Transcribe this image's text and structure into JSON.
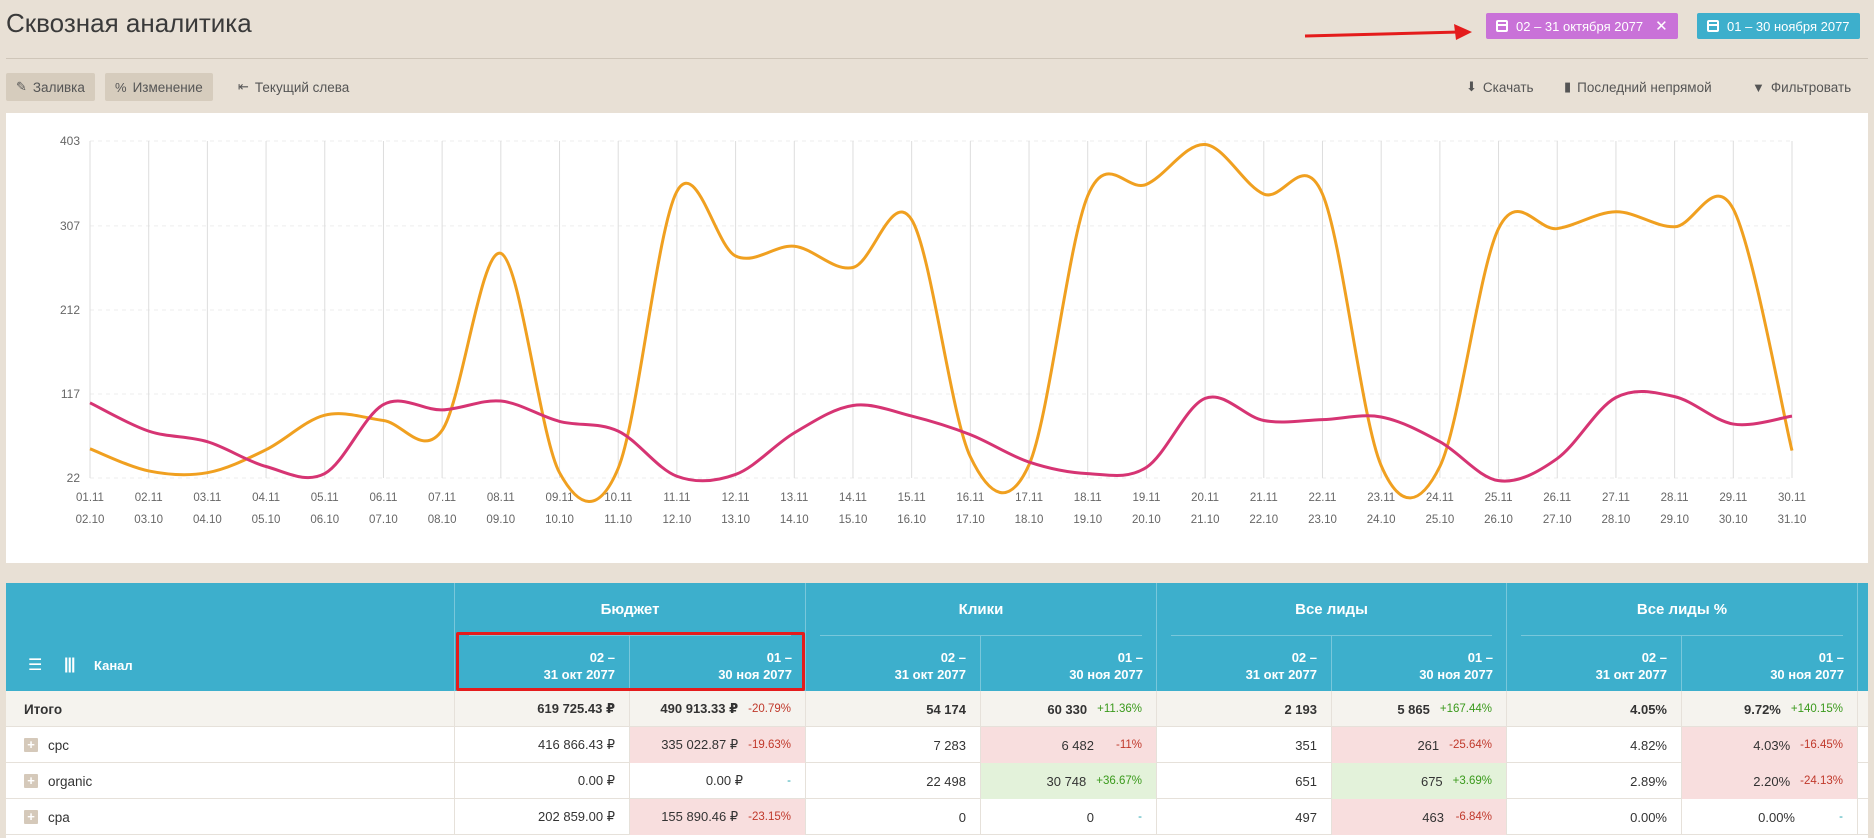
{
  "page": {
    "title": "Сквозная аналитика"
  },
  "date_filters": [
    {
      "label": "02 – 31 октября 2077",
      "color": "#c972d8",
      "removable": true
    },
    {
      "label": "01 – 30 ноября 2077",
      "color": "#3dafcc",
      "removable": false
    }
  ],
  "toolbar": {
    "fill_label": "Заливка",
    "change_label": "Изменение",
    "current_left_label": "Текущий слева",
    "download_label": "Скачать",
    "attribution_label": "Последний непрямой",
    "filter_label": "Фильтровать"
  },
  "chart_data": {
    "type": "line",
    "y_ticks": [
      22,
      117,
      212,
      307,
      403
    ],
    "ylim": [
      22,
      403
    ],
    "x_labels_top": [
      "01.11",
      "02.11",
      "03.11",
      "04.11",
      "05.11",
      "06.11",
      "07.11",
      "08.11",
      "09.11",
      "10.11",
      "11.11",
      "12.11",
      "13.11",
      "14.11",
      "15.11",
      "16.11",
      "17.11",
      "18.11",
      "19.11",
      "20.11",
      "21.11",
      "22.11",
      "23.11",
      "24.11",
      "25.11",
      "26.11",
      "27.11",
      "28.11",
      "29.11",
      "30.11"
    ],
    "x_labels_bottom": [
      "02.10",
      "03.10",
      "04.10",
      "05.10",
      "06.10",
      "07.10",
      "08.10",
      "09.10",
      "10.10",
      "11.10",
      "12.10",
      "13.10",
      "14.10",
      "15.10",
      "16.10",
      "17.10",
      "18.10",
      "19.10",
      "20.10",
      "21.10",
      "22.10",
      "23.10",
      "24.10",
      "25.10",
      "26.10",
      "27.10",
      "28.10",
      "29.10",
      "30.10",
      "31.10"
    ],
    "series": [
      {
        "color": "#f0a020",
        "values": [
          55,
          30,
          28,
          54,
          93,
          87,
          76,
          276,
          28,
          33,
          346,
          273,
          284,
          260,
          314,
          46,
          37,
          341,
          354,
          399,
          343,
          343,
          36,
          35,
          304,
          304,
          323,
          306,
          326,
          53
        ]
      },
      {
        "color": "#d63473",
        "values": [
          107,
          75,
          63,
          35,
          27,
          105,
          99,
          109,
          86,
          75,
          24,
          26,
          73,
          104,
          92,
          71,
          40,
          27,
          34,
          112,
          87,
          88,
          91,
          63,
          19,
          44,
          113,
          114,
          83,
          92
        ]
      }
    ],
    "grid": true
  },
  "table": {
    "channel_label": "Канал",
    "groups": [
      {
        "title": "Бюджет",
        "col1": [
          "02 –",
          "31 окт 2077"
        ],
        "col2": [
          "01 –",
          "30 ноя 2077"
        ]
      },
      {
        "title": "Клики",
        "col1": [
          "02 –",
          "31 окт 2077"
        ],
        "col2": [
          "01 –",
          "30 ноя 2077"
        ]
      },
      {
        "title": "Все лиды",
        "col1": [
          "02 –",
          "31 окт 2077"
        ],
        "col2": [
          "01 –",
          "30 ноя 2077"
        ]
      },
      {
        "title": "Все лиды %",
        "col1": [
          "02 –",
          "31 окт 2077"
        ],
        "col2": [
          "01 –",
          "30 ноя 2077"
        ]
      }
    ],
    "rows": [
      {
        "name": "Итого",
        "total": true,
        "cells": [
          {
            "v": "619 725.43 ₽"
          },
          {
            "v": "490 913.33 ₽",
            "pct": "-20.79%",
            "dir": "neg",
            "bg": ""
          },
          {
            "v": "54 174"
          },
          {
            "v": "60 330",
            "pct": "+11.36%",
            "dir": "pos",
            "bg": ""
          },
          {
            "v": "2 193"
          },
          {
            "v": "5 865",
            "pct": "+167.44%",
            "dir": "pos",
            "bg": ""
          },
          {
            "v": "4.05%"
          },
          {
            "v": "9.72%",
            "pct": "+140.15%",
            "dir": "pos",
            "bg": ""
          }
        ]
      },
      {
        "name": "cpc",
        "total": false,
        "cells": [
          {
            "v": "416 866.43 ₽"
          },
          {
            "v": "335 022.87 ₽",
            "pct": "-19.63%",
            "dir": "neg",
            "bg": "neg"
          },
          {
            "v": "7 283"
          },
          {
            "v": "6 482",
            "pct": "-11%",
            "dir": "neg",
            "bg": "neg"
          },
          {
            "v": "351"
          },
          {
            "v": "261",
            "pct": "-25.64%",
            "dir": "neg",
            "bg": "neg"
          },
          {
            "v": "4.82%"
          },
          {
            "v": "4.03%",
            "pct": "-16.45%",
            "dir": "neg",
            "bg": "neg"
          }
        ]
      },
      {
        "name": "organic",
        "total": false,
        "cells": [
          {
            "v": "0.00 ₽"
          },
          {
            "v": "0.00 ₽",
            "pct": "-",
            "dir": "neu",
            "bg": ""
          },
          {
            "v": "22 498"
          },
          {
            "v": "30 748",
            "pct": "+36.67%",
            "dir": "pos",
            "bg": "pos"
          },
          {
            "v": "651"
          },
          {
            "v": "675",
            "pct": "+3.69%",
            "dir": "pos",
            "bg": "pos"
          },
          {
            "v": "2.89%"
          },
          {
            "v": "2.20%",
            "pct": "-24.13%",
            "dir": "neg",
            "bg": "neg"
          }
        ]
      },
      {
        "name": "cpa",
        "total": false,
        "cells": [
          {
            "v": "202 859.00 ₽"
          },
          {
            "v": "155 890.46 ₽",
            "pct": "-23.15%",
            "dir": "neg",
            "bg": "neg"
          },
          {
            "v": "0"
          },
          {
            "v": "0",
            "pct": "-",
            "dir": "neu",
            "bg": ""
          },
          {
            "v": "497"
          },
          {
            "v": "463",
            "pct": "-6.84%",
            "dir": "neg",
            "bg": "neg"
          },
          {
            "v": "0.00%"
          },
          {
            "v": "0.00%",
            "pct": "-",
            "dir": "neu",
            "bg": ""
          }
        ]
      }
    ]
  }
}
